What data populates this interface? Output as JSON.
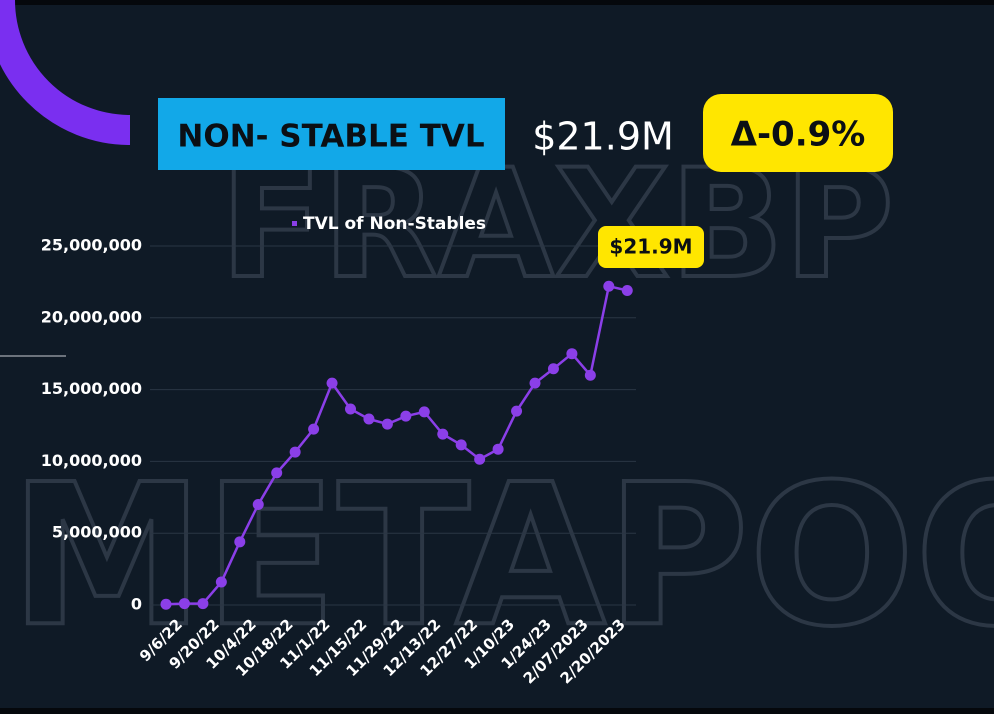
{
  "header": {
    "title": "NON- STABLE TVL",
    "value": "$21.9M",
    "change": "Δ-0.9%"
  },
  "watermark": [
    "FRAXBP",
    "METAPOOL"
  ],
  "chart_data": {
    "type": "line",
    "categories": [
      "9/6/22",
      null,
      "9/20/22",
      null,
      "10/4/22",
      null,
      "10/18/22",
      null,
      "11/1/22",
      null,
      "11/15/22",
      null,
      "11/29/22",
      null,
      "12/13/22",
      null,
      "12/27/22",
      null,
      "1/10/23",
      null,
      "1/24/23",
      null,
      "2/07/2023",
      null,
      "2/20/2023",
      null
    ],
    "series": [
      {
        "name": "TVL of Non-Stables",
        "color": "#8b3fe8",
        "values": [
          50000,
          100000,
          100000,
          1600000,
          4400000,
          7000000,
          9200000,
          10650000,
          12250000,
          15450000,
          13650000,
          12950000,
          12600000,
          13150000,
          13450000,
          11900000,
          11150000,
          10150000,
          10850000,
          13500000,
          15450000,
          16450000,
          17500000,
          16000000,
          22200000,
          21900000
        ]
      }
    ],
    "annotation": "$21.9M",
    "ylim": [
      0,
      25000000
    ],
    "yticks": [
      0,
      {
        "value": 5000000,
        "label": "5,000,000"
      },
      {
        "value": 10000000,
        "label": "10,000,000"
      },
      {
        "value": 15000000,
        "label": "15,000,000"
      },
      {
        "value": 20000000,
        "label": "20,000,000"
      },
      {
        "value": 25000000,
        "label": "25,000,000"
      }
    ],
    "grid": true
  }
}
